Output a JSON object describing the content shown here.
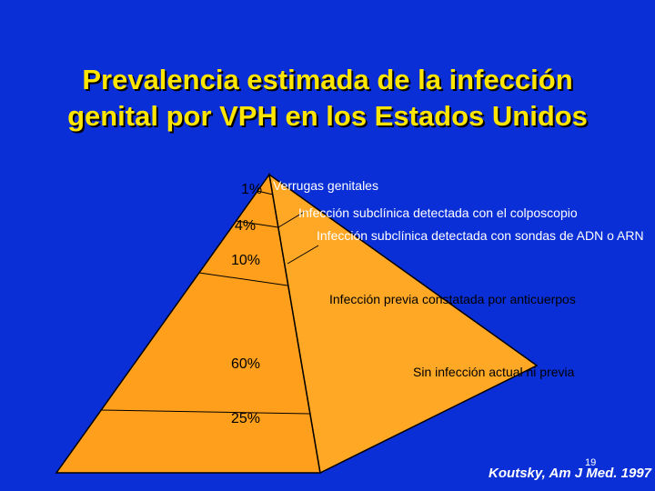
{
  "title": {
    "line1": "Prevalencia estimada de la infección",
    "line2": "genital por VPH en los Estados Unidos"
  },
  "pyramid": {
    "levels": [
      {
        "percent": "1%",
        "label": "Verrugas genitales"
      },
      {
        "percent": "4%",
        "label": "Infección subclínica detectada con el colposcopio"
      },
      {
        "percent": "10%",
        "label": "Infección subclínica detectada con sondas de ADN o ARN"
      },
      {
        "percent": "60%",
        "label": "Infección previa constatada por anticuerpos"
      },
      {
        "percent": "25%",
        "label": "Sin infección actual ni previa"
      }
    ],
    "colors": {
      "front": "#ff9f1c",
      "side": "#ffa826",
      "edge": "#000000",
      "background": "#0a2fd6"
    }
  },
  "footer": {
    "citation": "Koutsky, Am J Med. 1997",
    "page_number": "19"
  }
}
